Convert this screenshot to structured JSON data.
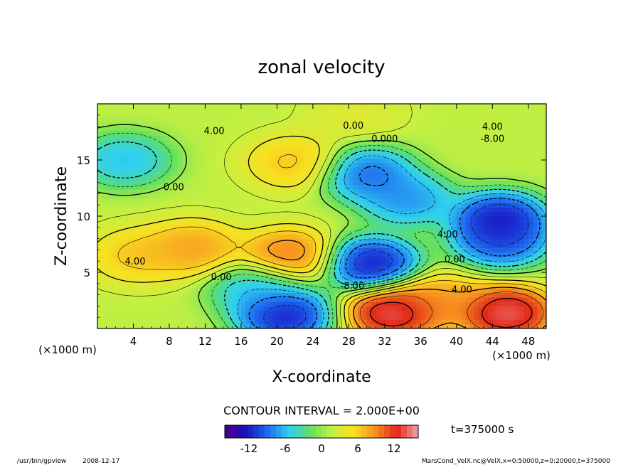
{
  "chart_data": {
    "type": "heatmap",
    "title": "zonal velocity",
    "xlabel": "X-coordinate",
    "ylabel": "Z-coordinate",
    "x_unit_label": "(×1000 m)",
    "x_unit_label_right": "(×1000 m)",
    "xlim": [
      0,
      50
    ],
    "ylim": [
      0,
      20
    ],
    "x_ticks": [
      4,
      8,
      12,
      16,
      20,
      24,
      28,
      32,
      36,
      40,
      44,
      48
    ],
    "y_ticks": [
      5,
      10,
      15
    ],
    "contour_interval_text": "CONTOUR INTERVAL = 2.000E+00",
    "time_label": "t=375000 s",
    "colorbar": {
      "min": -16,
      "max": 16,
      "ticks": [
        -12,
        -6,
        0,
        6,
        12
      ],
      "stops": [
        "#4a0080",
        "#1a10c0",
        "#1e6cf0",
        "#30d0f0",
        "#60e060",
        "#c8f040",
        "#f8e020",
        "#f89020",
        "#e02818",
        "#f8a0a8"
      ]
    },
    "contour_labels": [
      {
        "x": 13,
        "y": 17.3,
        "text": "4.00"
      },
      {
        "x": 28.5,
        "y": 17.8,
        "text": "0.00"
      },
      {
        "x": 32,
        "y": 16.6,
        "text": "0.000"
      },
      {
        "x": 44,
        "y": 17.7,
        "text": "4.00"
      },
      {
        "x": 44,
        "y": 16.6,
        "text": "-8.00"
      },
      {
        "x": 8.5,
        "y": 12.3,
        "text": "0.00"
      },
      {
        "x": 4.2,
        "y": 5.7,
        "text": "4.00"
      },
      {
        "x": 13.8,
        "y": 4.3,
        "text": "0.00"
      },
      {
        "x": 39,
        "y": 8.1,
        "text": "4.00"
      },
      {
        "x": 39.8,
        "y": 5.9,
        "text": "0.00"
      },
      {
        "x": 28.4,
        "y": 3.5,
        "text": "-8.00"
      },
      {
        "x": 40.6,
        "y": 3.2,
        "text": "4.00"
      }
    ],
    "extrema": [
      {
        "x": 4.5,
        "y": 6.5,
        "value": 8
      },
      {
        "x": 10.6,
        "y": 7.2,
        "value": 10
      },
      {
        "x": 21.3,
        "y": 6.5,
        "value": 12
      },
      {
        "x": 30.5,
        "y": 5.8,
        "value": -16
      },
      {
        "x": 44.8,
        "y": 9.8,
        "value": -16
      },
      {
        "x": 45,
        "y": 7.8,
        "value": -13
      },
      {
        "x": 20.8,
        "y": 1.2,
        "value": -16
      },
      {
        "x": 33,
        "y": 1.5,
        "value": 18
      },
      {
        "x": 45.5,
        "y": 1.4,
        "value": 18
      },
      {
        "x": 30,
        "y": 13.8,
        "value": -12
      },
      {
        "x": 34.5,
        "y": 11.5,
        "value": -10
      },
      {
        "x": 28.5,
        "y": 19.2,
        "value": 4
      },
      {
        "x": 22,
        "y": 14.8,
        "value": 8
      },
      {
        "x": 3,
        "y": 15,
        "value": -8
      },
      {
        "x": 18,
        "y": 3.5,
        "value": -8
      },
      {
        "x": 38,
        "y": 2.5,
        "value": 10
      }
    ]
  },
  "footer": {
    "program": "/usr/bin/gpview",
    "date": "2008-12-17",
    "source": "MarsCond_VelX.nc@VelX,x=0:50000,z=0:20000,t=375000"
  }
}
